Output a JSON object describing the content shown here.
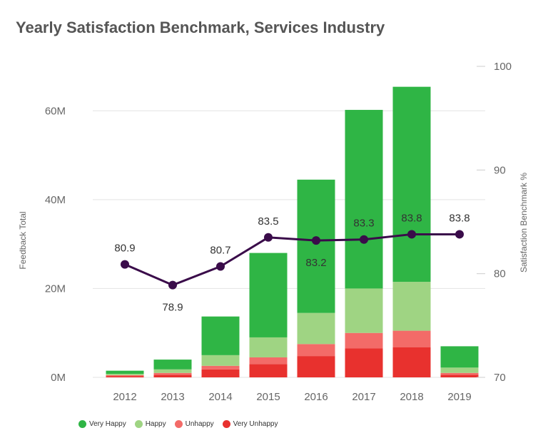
{
  "title": "Yearly Satisfaction Benchmark, Services Industry",
  "chart_data": {
    "type": "bar",
    "stacked": true,
    "title": "Yearly Satisfaction Benchmark, Services Industry",
    "categories": [
      "2012",
      "2013",
      "2014",
      "2015",
      "2016",
      "2017",
      "2018",
      "2019"
    ],
    "y_left": {
      "label": "Feedback Total",
      "range": [
        0,
        70
      ],
      "unit": "M",
      "ticks": [
        0,
        20,
        40,
        60
      ],
      "tick_labels": [
        "0M",
        "20M",
        "40M",
        "60M"
      ]
    },
    "y_right": {
      "label": "Satisfaction Benchmark %",
      "range": [
        70,
        100
      ],
      "ticks": [
        70,
        80,
        90,
        100
      ],
      "tick_labels": [
        "70",
        "80",
        "90",
        "100"
      ]
    },
    "series": [
      {
        "name": "Very Unhappy",
        "color": "#e8312e",
        "values": [
          0.3,
          0.6,
          1.8,
          3.0,
          4.8,
          6.5,
          6.8,
          0.6
        ]
      },
      {
        "name": "Unhappy",
        "color": "#f36b68",
        "values": [
          0.2,
          0.4,
          0.8,
          1.5,
          2.7,
          3.5,
          3.7,
          0.4
        ]
      },
      {
        "name": "Happy",
        "color": "#9fd483",
        "values": [
          0.3,
          0.8,
          2.4,
          4.5,
          7.0,
          10.0,
          11.0,
          1.2
        ]
      },
      {
        "name": "Very Happy",
        "color": "#2fb545",
        "values": [
          0.7,
          2.2,
          8.7,
          19.0,
          30.0,
          40.2,
          43.9,
          4.8
        ]
      }
    ],
    "line_series": {
      "name": "Satisfaction Benchmark",
      "axis": "right",
      "color": "#3a0c4a",
      "values": [
        80.9,
        78.9,
        80.7,
        83.5,
        83.2,
        83.3,
        83.8,
        83.8
      ],
      "labels": [
        "80.9",
        "78.9",
        "80.7",
        "83.5",
        "83.2",
        "83.3",
        "83.8",
        "83.8"
      ],
      "label_positions": [
        "above",
        "below",
        "above",
        "above",
        "below",
        "above",
        "above",
        "above"
      ]
    },
    "legend": {
      "placement": "bottom-left",
      "items": [
        {
          "name": "Very Happy",
          "color": "#2fb545"
        },
        {
          "name": "Happy",
          "color": "#9fd483"
        },
        {
          "name": "Unhappy",
          "color": "#f36b68"
        },
        {
          "name": "Very Unhappy",
          "color": "#e8312e"
        }
      ]
    },
    "grid": true
  }
}
